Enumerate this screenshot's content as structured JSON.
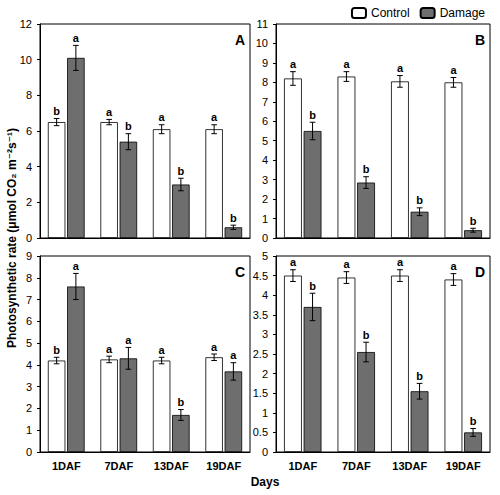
{
  "ylabel": "Photosynthetic rate (μmol CO₂ m⁻²s⁻¹)",
  "xlabel": "Days",
  "legend": "upper right",
  "chart_data": [
    {
      "type": "bar",
      "title": "A",
      "categories": [
        "1DAF",
        "7DAF",
        "13DAF",
        "19DAF"
      ],
      "ylim": [
        0,
        12
      ],
      "yticks": [
        0,
        2,
        4,
        6,
        8,
        10,
        12
      ],
      "grid": false,
      "tick_labels": "y",
      "series": [
        {
          "name": "Control",
          "color": "#ffffff",
          "values": [
            6.5,
            6.5,
            6.1,
            6.1
          ],
          "errors": [
            0.2,
            0.15,
            0.25,
            0.25
          ],
          "letters": [
            "b",
            "a",
            "a",
            "a"
          ]
        },
        {
          "name": "Damage",
          "color": "#6e6e6e",
          "values": [
            10.1,
            5.4,
            3.0,
            0.6
          ],
          "errors": [
            0.7,
            0.45,
            0.35,
            0.12
          ],
          "letters": [
            "a",
            "b",
            "b",
            "b"
          ]
        }
      ]
    },
    {
      "type": "bar",
      "title": "B",
      "categories": [
        "1DAF",
        "7DAF",
        "13DAF",
        "19DAF"
      ],
      "ylim": [
        0,
        11
      ],
      "yticks": [
        0,
        1,
        2,
        3,
        4,
        5,
        6,
        7,
        8,
        9,
        10,
        11
      ],
      "grid": false,
      "tick_labels": "y",
      "series": [
        {
          "name": "Control",
          "color": "#ffffff",
          "values": [
            8.2,
            8.3,
            8.05,
            8.0
          ],
          "errors": [
            0.35,
            0.25,
            0.3,
            0.25
          ],
          "letters": [
            "a",
            "a",
            "a",
            "a"
          ]
        },
        {
          "name": "Damage",
          "color": "#6e6e6e",
          "values": [
            5.5,
            2.85,
            1.35,
            0.4
          ],
          "errors": [
            0.45,
            0.3,
            0.2,
            0.1
          ],
          "letters": [
            "b",
            "b",
            "b",
            "b"
          ]
        }
      ]
    },
    {
      "type": "bar",
      "title": "C",
      "categories": [
        "1DAF",
        "7DAF",
        "13DAF",
        "19DAF"
      ],
      "ylim": [
        0,
        9
      ],
      "yticks": [
        0,
        1,
        2,
        3,
        4,
        5,
        6,
        7,
        8,
        9
      ],
      "grid": false,
      "tick_labels": true,
      "series": [
        {
          "name": "Control",
          "color": "#ffffff",
          "values": [
            4.2,
            4.25,
            4.2,
            4.35
          ],
          "errors": [
            0.15,
            0.15,
            0.15,
            0.15
          ],
          "letters": [
            "b",
            "a",
            "a",
            "a"
          ]
        },
        {
          "name": "Damage",
          "color": "#6e6e6e",
          "values": [
            7.6,
            4.3,
            1.7,
            3.7
          ],
          "errors": [
            0.6,
            0.5,
            0.25,
            0.4
          ],
          "letters": [
            "a",
            "a",
            "b",
            "a"
          ]
        }
      ]
    },
    {
      "type": "bar",
      "title": "D",
      "categories": [
        "1DAF",
        "7DAF",
        "13DAF",
        "19DAF"
      ],
      "ylim": [
        0,
        5
      ],
      "yticks": [
        0,
        0.5,
        1,
        1.5,
        2,
        2.5,
        3,
        3.5,
        4,
        4.5,
        5
      ],
      "grid": false,
      "tick_labels": true,
      "series": [
        {
          "name": "Control",
          "color": "#ffffff",
          "values": [
            4.5,
            4.45,
            4.5,
            4.4
          ],
          "errors": [
            0.15,
            0.15,
            0.15,
            0.15
          ],
          "letters": [
            "a",
            "a",
            "a",
            "a"
          ]
        },
        {
          "name": "Damage",
          "color": "#6e6e6e",
          "values": [
            3.7,
            2.55,
            1.55,
            0.5
          ],
          "errors": [
            0.35,
            0.25,
            0.2,
            0.1
          ],
          "letters": [
            "b",
            "b",
            "b",
            "b"
          ]
        }
      ]
    }
  ]
}
